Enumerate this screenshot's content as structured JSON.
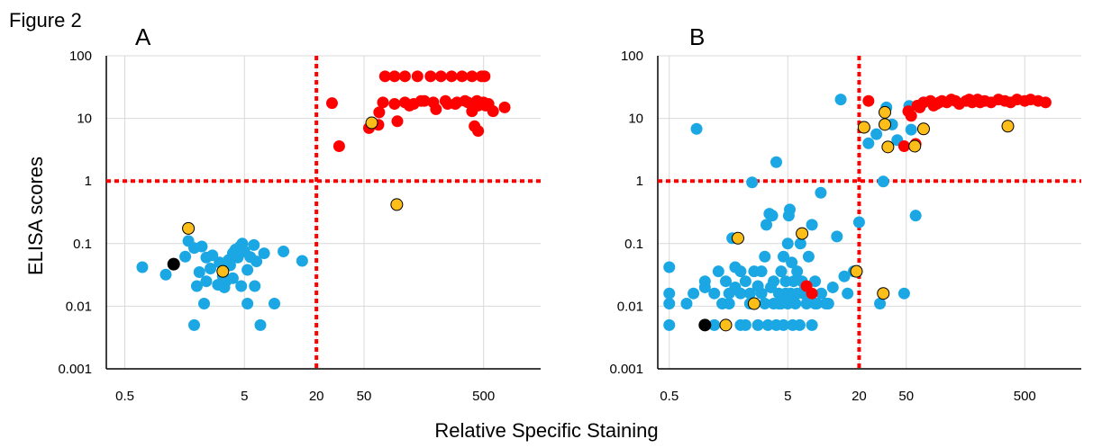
{
  "figure_title": "Figure 2",
  "ylabel": "ELISA scores",
  "xlabel": "Relative Specific Staining",
  "colors": {
    "blue": "#1aa7e4",
    "red": "#ff0000",
    "orange": "#fdbe1a",
    "black": "#000000",
    "threshold": "#ff0000"
  },
  "chart_data": [
    {
      "type": "scatter",
      "panel": "A",
      "xscale": "log",
      "yscale": "log",
      "xlim": [
        0.35,
        1500
      ],
      "ylim": [
        0.001,
        100
      ],
      "xticks": [
        "0.5",
        "5",
        "20",
        "50",
        "500"
      ],
      "yticks": [
        "0.001",
        "0.01",
        "0.1",
        "1",
        "10",
        "100"
      ],
      "highlight_tick": "20",
      "thresholds": {
        "x": 20,
        "y": 1
      },
      "series": [
        {
          "color": "blue",
          "points": [
            [
              0.7,
              0.042
            ],
            [
              1.1,
              0.032
            ],
            [
              1.7,
              0.11
            ],
            [
              1.6,
              0.062
            ],
            [
              1.9,
              0.085
            ],
            [
              2.2,
              0.09
            ],
            [
              2.0,
              0.021
            ],
            [
              2.4,
              0.025
            ],
            [
              2.7,
              0.065
            ],
            [
              2.3,
              0.011
            ],
            [
              1.9,
              0.005
            ],
            [
              3.0,
              0.022
            ],
            [
              3.1,
              0.05
            ],
            [
              3.3,
              0.03
            ],
            [
              3.5,
              0.025
            ],
            [
              3.7,
              0.055
            ],
            [
              3.8,
              0.045
            ],
            [
              4.0,
              0.07
            ],
            [
              4.2,
              0.08
            ],
            [
              4.4,
              0.06
            ],
            [
              4.6,
              0.09
            ],
            [
              4.8,
              0.1
            ],
            [
              5.0,
              0.075
            ],
            [
              5.3,
              0.038
            ],
            [
              4.7,
              0.021
            ],
            [
              5.3,
              0.011
            ],
            [
              5.6,
              0.061
            ],
            [
              6.0,
              0.095
            ],
            [
              6.3,
              0.052
            ],
            [
              6.1,
              0.021
            ],
            [
              6.8,
              0.005
            ],
            [
              7.3,
              0.07
            ],
            [
              8.9,
              0.011
            ],
            [
              10.6,
              0.075
            ],
            [
              15.2,
              0.053
            ],
            [
              4.0,
              0.028
            ],
            [
              3.4,
              0.02
            ],
            [
              2.6,
              0.04
            ],
            [
              2.4,
              0.06
            ],
            [
              2.1,
              0.035
            ]
          ]
        },
        {
          "color": "red",
          "points": [
            [
              27,
              17.5
            ],
            [
              31,
              3.6
            ],
            [
              55,
              7
            ],
            [
              66,
              7.9
            ],
            [
              67,
              12.5
            ],
            [
              72,
              18
            ],
            [
              95,
              9
            ],
            [
              120,
              16
            ],
            [
              150,
              19
            ],
            [
              200,
              14
            ],
            [
              250,
              17
            ],
            [
              300,
              18
            ],
            [
              350,
              19
            ],
            [
              400,
              13
            ],
            [
              450,
              16
            ],
            [
              500,
              18
            ],
            [
              550,
              17
            ],
            [
              600,
              13
            ],
            [
              750,
              15
            ],
            [
              420,
              7.5
            ],
            [
              450,
              6.3
            ],
            [
              75,
              47
            ],
            [
              90,
              47
            ],
            [
              110,
              47
            ],
            [
              140,
              47
            ],
            [
              180,
              47
            ],
            [
              220,
              47
            ],
            [
              270,
              47
            ],
            [
              330,
              47
            ],
            [
              400,
              47
            ],
            [
              480,
              47
            ],
            [
              510,
              47
            ],
            [
              90,
              17
            ],
            [
              110,
              18
            ],
            [
              130,
              17
            ],
            [
              160,
              19
            ],
            [
              190,
              18
            ],
            [
              240,
              19
            ],
            [
              290,
              17
            ],
            [
              370,
              18
            ],
            [
              440,
              19
            ],
            [
              520,
              16
            ]
          ]
        },
        {
          "color": "orange",
          "points": [
            [
              1.7,
              0.175
            ],
            [
              3.3,
              0.036
            ],
            [
              58,
              8.5
            ],
            [
              94,
              0.42
            ]
          ]
        },
        {
          "color": "black",
          "points": [
            [
              1.28,
              0.047
            ]
          ]
        }
      ]
    },
    {
      "type": "scatter",
      "panel": "B",
      "xscale": "log",
      "yscale": "log",
      "xlim": [
        0.4,
        1500
      ],
      "ylim": [
        0.001,
        100
      ],
      "xticks": [
        "0.5",
        "5",
        "20",
        "50",
        "500"
      ],
      "yticks": [
        "0.001",
        "0.01",
        "0.1",
        "1",
        "10",
        "100"
      ],
      "highlight_tick": "20",
      "thresholds": {
        "x": 20,
        "y": 1
      },
      "series": [
        {
          "color": "blue",
          "points": [
            [
              0.5,
              0.042
            ],
            [
              0.5,
              0.016
            ],
            [
              0.5,
              0.011
            ],
            [
              0.5,
              0.005
            ],
            [
              0.85,
              6.8
            ],
            [
              0.7,
              0.011
            ],
            [
              1.0,
              0.02
            ],
            [
              1.2,
              0.016
            ],
            [
              1.3,
              0.036
            ],
            [
              1.5,
              0.025
            ],
            [
              1.6,
              0.011
            ],
            [
              1.7,
              0.122
            ],
            [
              1.8,
              0.042
            ],
            [
              2.0,
              0.016
            ],
            [
              2.0,
              0.005
            ],
            [
              2.2,
              0.025
            ],
            [
              2.4,
              0.011
            ],
            [
              2.5,
              0.95
            ],
            [
              2.6,
              0.036
            ],
            [
              2.8,
              0.021
            ],
            [
              3.0,
              0.016
            ],
            [
              3.2,
              0.062
            ],
            [
              3.3,
              0.2
            ],
            [
              3.5,
              0.3
            ],
            [
              3.7,
              0.28
            ],
            [
              3.8,
              0.025
            ],
            [
              4.0,
              2.0
            ],
            [
              4.2,
              0.011
            ],
            [
              4.4,
              0.036
            ],
            [
              4.6,
              0.062
            ],
            [
              4.8,
              0.016
            ],
            [
              5.0,
              0.1
            ],
            [
              5.1,
              0.28
            ],
            [
              5.2,
              0.35
            ],
            [
              5.4,
              0.05
            ],
            [
              5.6,
              0.025
            ],
            [
              6.0,
              0.036
            ],
            [
              6.4,
              0.1
            ],
            [
              6.8,
              0.016
            ],
            [
              7.5,
              0.062
            ],
            [
              8.0,
              0.2
            ],
            [
              8.5,
              0.025
            ],
            [
              9.5,
              0.65
            ],
            [
              11,
              0.011
            ],
            [
              13,
              0.13
            ],
            [
              14,
              20
            ],
            [
              15,
              0.03
            ],
            [
              16,
              0.016
            ],
            [
              18,
              0.036
            ],
            [
              20,
              0.22
            ],
            [
              24,
              4
            ],
            [
              28,
              5.6
            ],
            [
              30,
              0.011
            ],
            [
              32,
              0.98
            ],
            [
              34,
              15
            ],
            [
              38,
              8
            ],
            [
              42,
              4.5
            ],
            [
              48,
              0.016
            ],
            [
              53,
              15.8
            ],
            [
              55,
              6.6
            ],
            [
              60,
              0.28
            ],
            [
              70,
              18
            ],
            [
              1.0,
              0.025
            ],
            [
              1.4,
              0.011
            ],
            [
              1.8,
              0.02
            ],
            [
              2.2,
              0.005
            ],
            [
              2.6,
              0.011
            ],
            [
              3.0,
              0.036
            ],
            [
              3.4,
              0.005
            ],
            [
              3.8,
              0.011
            ],
            [
              4.2,
              0.016
            ],
            [
              4.6,
              0.005
            ],
            [
              5.0,
              0.011
            ],
            [
              5.5,
              0.005
            ],
            [
              6.0,
              0.016
            ],
            [
              6.6,
              0.025
            ],
            [
              7.2,
              0.011
            ],
            [
              8.0,
              0.005
            ],
            [
              8.8,
              0.011
            ],
            [
              9.6,
              0.016
            ],
            [
              10.5,
              0.011
            ],
            [
              12,
              0.02
            ],
            [
              0.8,
              0.016
            ],
            [
              1.2,
              0.005
            ],
            [
              1.6,
              0.016
            ],
            [
              2.0,
              0.036
            ],
            [
              2.4,
              0.016
            ],
            [
              2.8,
              0.005
            ],
            [
              3.2,
              0.011
            ],
            [
              3.6,
              0.02
            ],
            [
              4.0,
              0.005
            ],
            [
              4.4,
              0.011
            ],
            [
              4.8,
              0.025
            ],
            [
              5.3,
              0.016
            ],
            [
              5.8,
              0.011
            ],
            [
              6.3,
              0.005
            ],
            [
              7.0,
              0.02
            ],
            [
              7.8,
              0.016
            ],
            [
              8.5,
              0.011
            ]
          ]
        },
        {
          "color": "red",
          "points": [
            [
              24,
              19
            ],
            [
              48,
              3.6
            ],
            [
              52,
              13
            ],
            [
              55,
              11
            ],
            [
              60,
              3.9
            ],
            [
              62,
              16
            ],
            [
              65,
              15
            ],
            [
              70,
              18
            ],
            [
              80,
              19
            ],
            [
              90,
              17
            ],
            [
              100,
              19
            ],
            [
              110,
              18
            ],
            [
              120,
              20
            ],
            [
              140,
              17
            ],
            [
              160,
              19
            ],
            [
              180,
              18
            ],
            [
              200,
              20
            ],
            [
              230,
              19
            ],
            [
              260,
              18
            ],
            [
              300,
              20
            ],
            [
              340,
              19
            ],
            [
              380,
              18
            ],
            [
              430,
              20
            ],
            [
              500,
              19
            ],
            [
              560,
              20
            ],
            [
              650,
              19
            ],
            [
              750,
              18
            ],
            [
              7.2,
              0.021
            ],
            [
              8.0,
              0.016
            ],
            [
              85,
              16
            ],
            [
              95,
              18
            ],
            [
              130,
              19
            ],
            [
              170,
              20
            ],
            [
              210,
              18
            ]
          ]
        },
        {
          "color": "orange",
          "points": [
            [
              22,
              7.2
            ],
            [
              33,
              12.5
            ],
            [
              33,
              8
            ],
            [
              35,
              3.5
            ],
            [
              59,
              3.6
            ],
            [
              70,
              6.8
            ],
            [
              360,
              7.5
            ],
            [
              1.9,
              0.122
            ],
            [
              2.6,
              0.011
            ],
            [
              1.5,
              0.005
            ],
            [
              6.6,
              0.145
            ],
            [
              19,
              0.036
            ],
            [
              32,
              0.016
            ]
          ]
        },
        {
          "color": "black",
          "points": [
            [
              1.0,
              0.005
            ]
          ]
        }
      ]
    }
  ]
}
